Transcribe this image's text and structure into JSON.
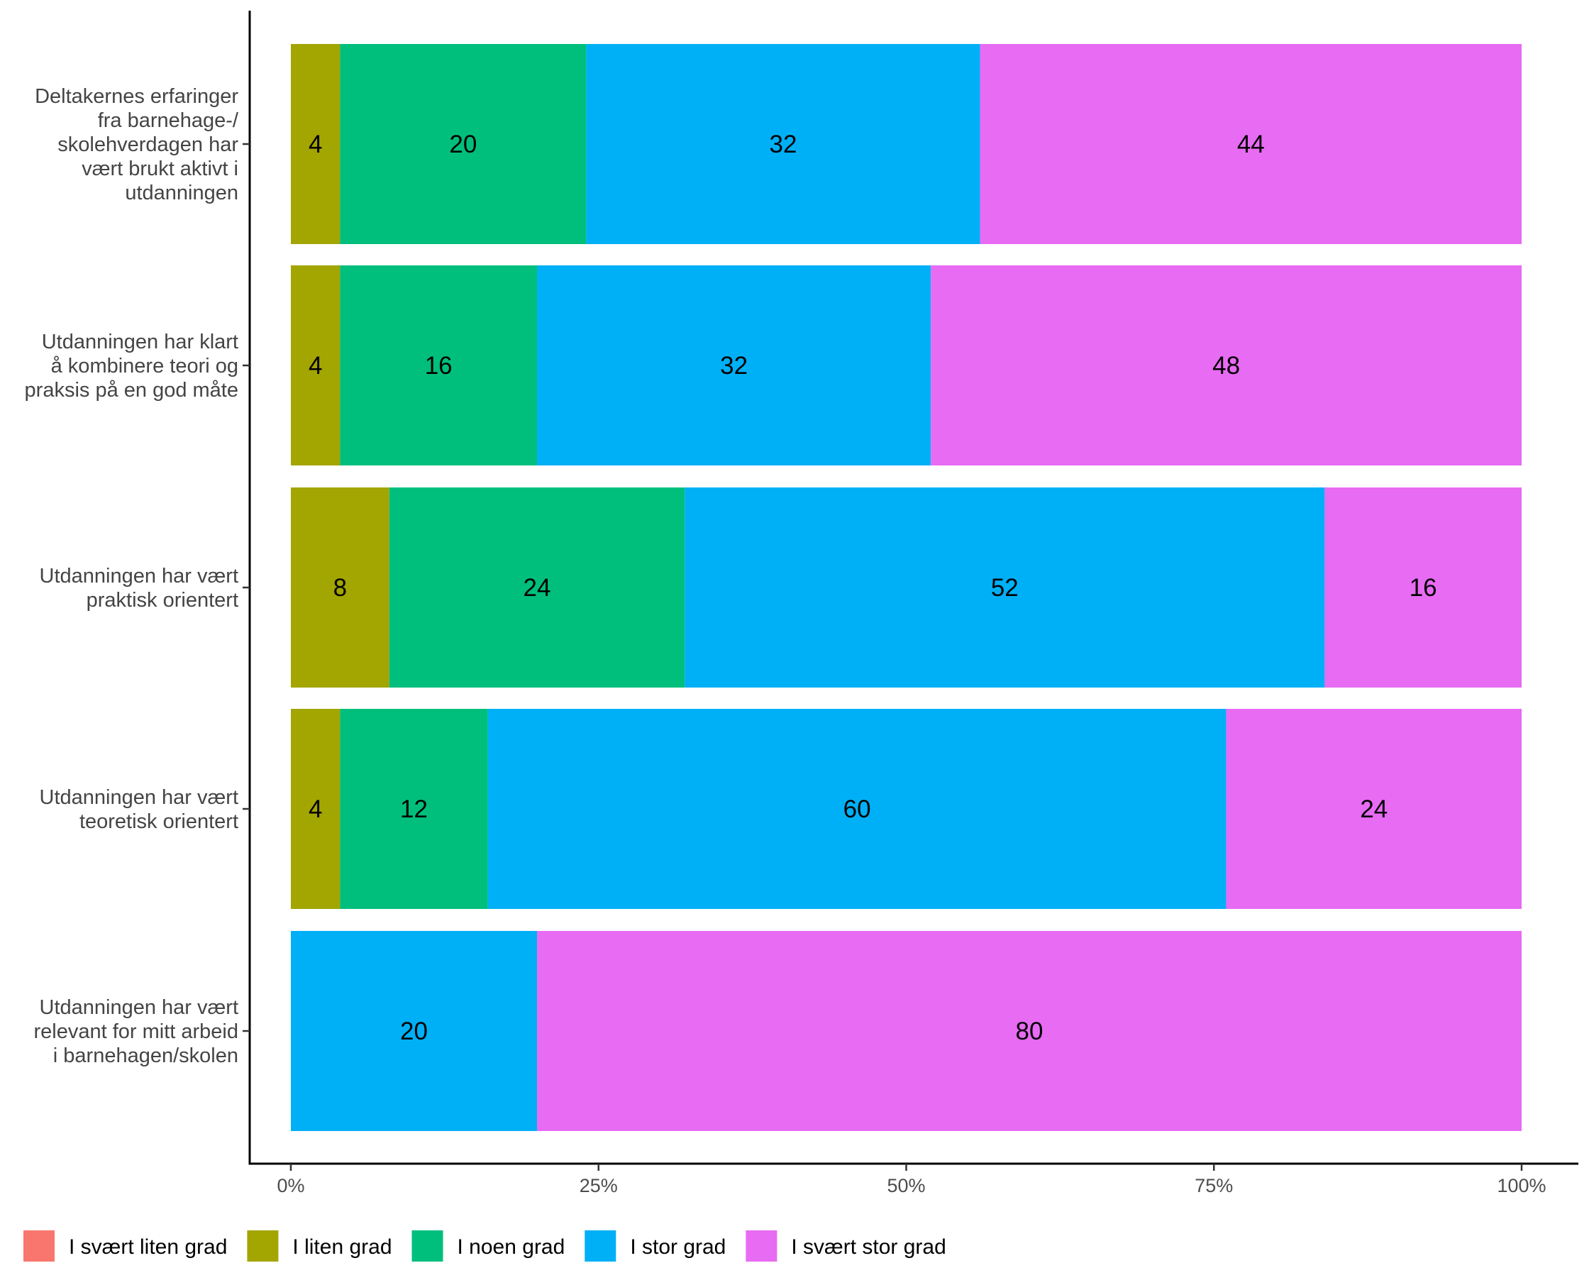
{
  "chart_data": {
    "type": "bar",
    "orientation": "horizontal",
    "stacked": true,
    "categories": [
      [
        "Deltakernes erfaringer",
        "fra barnehage-/",
        "skolehverdagen har",
        "vært brukt aktivt i",
        "utdanningen"
      ],
      [
        "Utdanningen har klart",
        "å kombinere teori og",
        "praksis på en god måte"
      ],
      [
        "Utdanningen har vært",
        "praktisk orientert"
      ],
      [
        "Utdanningen har vært",
        "teoretisk orientert"
      ],
      [
        "Utdanningen har vært",
        "relevant for mitt arbeid",
        "i barnehagen/skolen"
      ]
    ],
    "series": [
      {
        "name": "I svært liten grad",
        "color": "#F8766D",
        "values": [
          0,
          0,
          0,
          0,
          0
        ]
      },
      {
        "name": "I liten grad",
        "color": "#A3A500",
        "values": [
          4,
          4,
          8,
          4,
          0
        ]
      },
      {
        "name": "I noen grad",
        "color": "#00BF7D",
        "values": [
          20,
          16,
          24,
          12,
          0
        ]
      },
      {
        "name": "I stor grad",
        "color": "#00B0F6",
        "values": [
          32,
          32,
          52,
          60,
          20
        ]
      },
      {
        "name": "I svært stor grad",
        "color": "#E76BF3",
        "values": [
          44,
          48,
          16,
          24,
          80
        ]
      }
    ],
    "xlim": [
      0,
      100
    ],
    "xticks": [
      0,
      25,
      50,
      75,
      100
    ],
    "xtick_labels": [
      "0%",
      "25%",
      "50%",
      "75%",
      "100%"
    ],
    "xlabel": "",
    "ylabel": "",
    "title": "",
    "legend_position": "bottom",
    "grid": false
  }
}
